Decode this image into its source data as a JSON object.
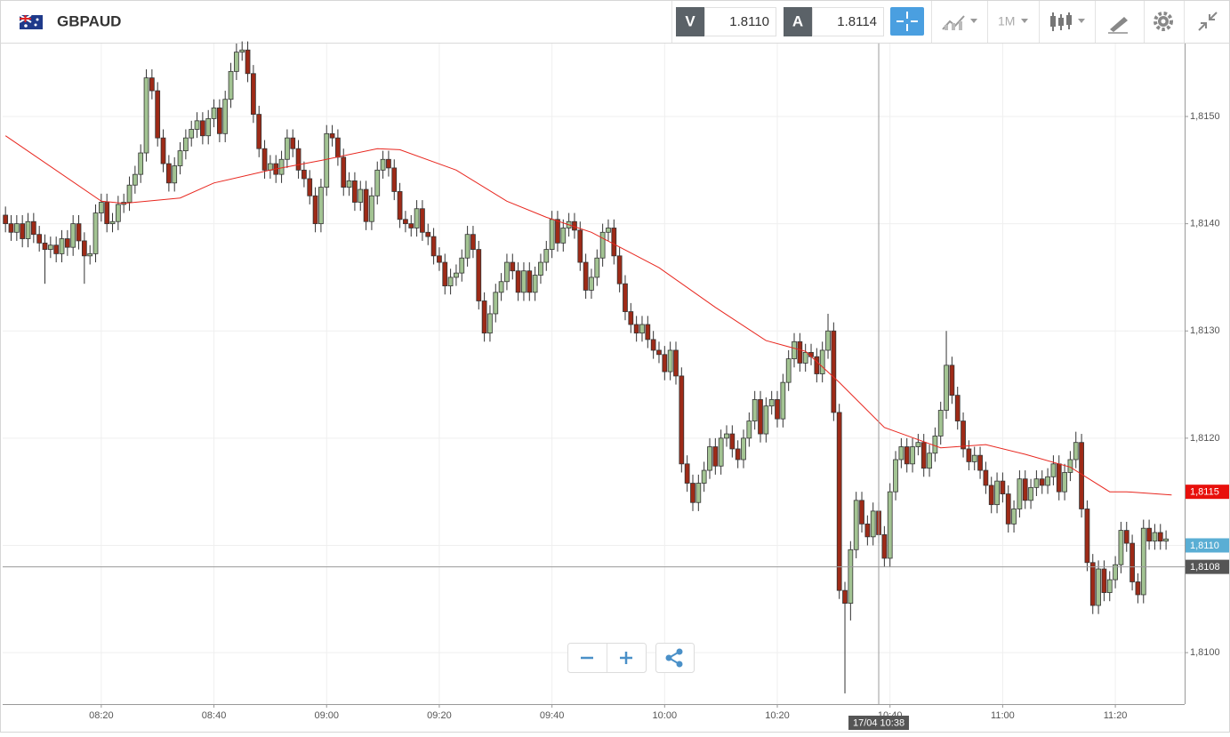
{
  "toolbar": {
    "symbol": "GBPAUD",
    "bid_label": "V",
    "bid": "1.8110",
    "ask_label": "A",
    "ask": "1.8114",
    "timeframe": "1M"
  },
  "chart_data": {
    "type": "candlestick",
    "up_color": "#a3c493",
    "down_color": "#9e2a17",
    "grid": true,
    "xlim": [
      482.5,
      692.3
    ],
    "ylim": [
      1.80952,
      1.81568
    ],
    "xticks": [
      {
        "value": 500,
        "label": "08:20"
      },
      {
        "value": 520,
        "label": "08:40"
      },
      {
        "value": 540,
        "label": "09:00"
      },
      {
        "value": 560,
        "label": "09:20"
      },
      {
        "value": 580,
        "label": "09:40"
      },
      {
        "value": 600,
        "label": "10:00"
      },
      {
        "value": 620,
        "label": "10:20"
      },
      {
        "value": 640,
        "label": "10:40"
      },
      {
        "value": 660,
        "label": "11:00"
      },
      {
        "value": 680,
        "label": "11:20"
      }
    ],
    "yticks": [
      {
        "value": 1.81,
        "label": "1,8100"
      },
      {
        "value": 1.811,
        "label": "1,8110"
      },
      {
        "value": 1.812,
        "label": "1,8120"
      },
      {
        "value": 1.813,
        "label": "1,8130"
      },
      {
        "value": 1.814,
        "label": "1,8140"
      },
      {
        "value": 1.815,
        "label": "1,8150"
      }
    ],
    "x": [
      483,
      484,
      485,
      486,
      487,
      488,
      489,
      490,
      491,
      492,
      493,
      494,
      495,
      496,
      497,
      498,
      499,
      500,
      501,
      502,
      503,
      504,
      505,
      506,
      507,
      508,
      509,
      510,
      511,
      512,
      513,
      514,
      515,
      516,
      517,
      518,
      519,
      520,
      521,
      522,
      523,
      524,
      525,
      526,
      527,
      528,
      529,
      530,
      531,
      532,
      533,
      534,
      535,
      536,
      537,
      538,
      539,
      540,
      541,
      542,
      543,
      544,
      545,
      546,
      547,
      548,
      549,
      550,
      551,
      552,
      553,
      554,
      555,
      556,
      557,
      558,
      559,
      560,
      561,
      562,
      563,
      564,
      565,
      566,
      567,
      568,
      569,
      570,
      571,
      572,
      573,
      574,
      575,
      576,
      577,
      578,
      579,
      580,
      581,
      582,
      583,
      584,
      585,
      586,
      587,
      588,
      589,
      590,
      591,
      592,
      593,
      594,
      595,
      596,
      597,
      598,
      599,
      600,
      601,
      602,
      603,
      604,
      605,
      606,
      607,
      608,
      609,
      610,
      611,
      612,
      613,
      614,
      615,
      616,
      617,
      618,
      619,
      620,
      621,
      622,
      623,
      624,
      625,
      626,
      627,
      628,
      629,
      630,
      631,
      632,
      633,
      634,
      635,
      636,
      637,
      638,
      639,
      640,
      641,
      642,
      643,
      644,
      645,
      646,
      647,
      648,
      649,
      650,
      651,
      652,
      653,
      654,
      655,
      656,
      657,
      658,
      659,
      660,
      661,
      662,
      663,
      664,
      665,
      666,
      667,
      668,
      669,
      670,
      671,
      672,
      673,
      674,
      675,
      676,
      677,
      678,
      679,
      680,
      681,
      682,
      683,
      684,
      685,
      686,
      687,
      688,
      689
    ],
    "open": [
      1.81408,
      1.814,
      1.81392,
      1.814,
      1.81386,
      1.81402,
      1.8139,
      1.81382,
      1.81376,
      1.8138,
      1.81372,
      1.81386,
      1.81378,
      1.814,
      1.81384,
      1.8137,
      1.81372,
      1.8141,
      1.8142,
      1.814,
      1.81402,
      1.81418,
      1.8142,
      1.81436,
      1.81446,
      1.81466,
      1.81536,
      1.81524,
      1.8148,
      1.81456,
      1.81438,
      1.81454,
      1.81468,
      1.8148,
      1.81488,
      1.81496,
      1.81482,
      1.81498,
      1.81508,
      1.81484,
      1.81516,
      1.81542,
      1.8156,
      1.81562,
      1.8154,
      1.81502,
      1.8147,
      1.8145,
      1.81456,
      1.81446,
      1.8146,
      1.8148,
      1.8147,
      1.8145,
      1.81442,
      1.81426,
      1.814,
      1.81434,
      1.81484,
      1.8148,
      1.81462,
      1.81434,
      1.8144,
      1.8142,
      1.81432,
      1.81402,
      1.81426,
      1.8145,
      1.8146,
      1.81452,
      1.8143,
      1.81404,
      1.814,
      1.81396,
      1.81414,
      1.81392,
      1.81388,
      1.8137,
      1.81364,
      1.81342,
      1.8135,
      1.81354,
      1.81368,
      1.8139,
      1.81376,
      1.81328,
      1.81298,
      1.81316,
      1.81336,
      1.81346,
      1.81364,
      1.81356,
      1.81336,
      1.81356,
      1.81336,
      1.81352,
      1.81364,
      1.81376,
      1.81404,
      1.81382,
      1.81396,
      1.81402,
      1.81394,
      1.81364,
      1.81338,
      1.8135,
      1.81368,
      1.81392,
      1.81396,
      1.8137,
      1.81344,
      1.81318,
      1.81306,
      1.81298,
      1.81306,
      1.81292,
      1.81282,
      1.81278,
      1.81262,
      1.81282,
      1.81258,
      1.81176,
      1.81158,
      1.8114,
      1.81158,
      1.8117,
      1.81192,
      1.81174,
      1.812,
      1.81204,
      1.8119,
      1.8118,
      1.812,
      1.81216,
      1.81236,
      1.81204,
      1.8123,
      1.81236,
      1.81218,
      1.81252,
      1.81274,
      1.8129,
      1.8127,
      1.8128,
      1.81276,
      1.8126,
      1.81282,
      1.813,
      1.81224,
      1.81058,
      1.81046,
      1.81096,
      1.81142,
      1.8112,
      1.81108,
      1.81132,
      1.8111,
      1.81088,
      1.8115,
      1.8118,
      1.81192,
      1.81176,
      1.81192,
      1.81196,
      1.81172,
      1.81186,
      1.81202,
      1.81226,
      1.81268,
      1.8124,
      1.81216,
      1.8119,
      1.81178,
      1.81184,
      1.8117,
      1.81156,
      1.81138,
      1.8116,
      1.81148,
      1.8112,
      1.81134,
      1.81162,
      1.81142,
      1.81154,
      1.81162,
      1.81156,
      1.81164,
      1.81176,
      1.8115,
      1.81168,
      1.8118,
      1.81196,
      1.81134,
      1.81084,
      1.81044,
      1.81078,
      1.81056,
      1.81068,
      1.81082,
      1.81114,
      1.81102,
      1.81066,
      1.81054,
      1.81116,
      1.81104,
      1.81112,
      1.81104
    ],
    "high": [
      1.81416,
      1.81408,
      1.81408,
      1.81408,
      1.8141,
      1.8141,
      1.81398,
      1.8139,
      1.81388,
      1.81388,
      1.81394,
      1.81394,
      1.81408,
      1.81408,
      1.81392,
      1.8138,
      1.81418,
      1.81428,
      1.81428,
      1.8141,
      1.81426,
      1.81428,
      1.81444,
      1.81454,
      1.81474,
      1.81544,
      1.81544,
      1.81532,
      1.81488,
      1.81464,
      1.81462,
      1.81476,
      1.81488,
      1.81496,
      1.81504,
      1.81504,
      1.81506,
      1.81516,
      1.81516,
      1.81524,
      1.8155,
      1.81568,
      1.8157,
      1.8157,
      1.81548,
      1.8151,
      1.81478,
      1.81464,
      1.81464,
      1.81468,
      1.81488,
      1.81488,
      1.81478,
      1.81458,
      1.8145,
      1.81434,
      1.81442,
      1.81492,
      1.81492,
      1.81488,
      1.8147,
      1.81448,
      1.81448,
      1.8144,
      1.8144,
      1.81434,
      1.81458,
      1.81468,
      1.81468,
      1.8146,
      1.81438,
      1.81412,
      1.81408,
      1.81422,
      1.81422,
      1.814,
      1.81396,
      1.81378,
      1.81372,
      1.81358,
      1.81362,
      1.81376,
      1.81398,
      1.81398,
      1.81384,
      1.81336,
      1.81324,
      1.81344,
      1.81354,
      1.81372,
      1.81372,
      1.81364,
      1.81364,
      1.81364,
      1.8136,
      1.81372,
      1.81384,
      1.81412,
      1.81412,
      1.81404,
      1.8141,
      1.8141,
      1.81402,
      1.81372,
      1.81358,
      1.81376,
      1.814,
      1.81404,
      1.81404,
      1.81378,
      1.81352,
      1.81326,
      1.81314,
      1.81314,
      1.81314,
      1.813,
      1.8129,
      1.81286,
      1.8129,
      1.8129,
      1.81266,
      1.81184,
      1.81166,
      1.81166,
      1.81178,
      1.812,
      1.812,
      1.81208,
      1.81212,
      1.81212,
      1.81198,
      1.81208,
      1.81224,
      1.81244,
      1.81244,
      1.81238,
      1.81244,
      1.81244,
      1.8126,
      1.81282,
      1.81298,
      1.81298,
      1.81288,
      1.81288,
      1.81284,
      1.8129,
      1.81316,
      1.81308,
      1.81232,
      1.81066,
      1.81104,
      1.8115,
      1.8115,
      1.81128,
      1.8114,
      1.8114,
      1.81118,
      1.81158,
      1.81188,
      1.812,
      1.812,
      1.812,
      1.81204,
      1.81204,
      1.81194,
      1.8121,
      1.81234,
      1.813,
      1.81276,
      1.81248,
      1.81224,
      1.81198,
      1.81192,
      1.81192,
      1.81178,
      1.81164,
      1.81168,
      1.81168,
      1.81156,
      1.81142,
      1.8117,
      1.8117,
      1.81162,
      1.8117,
      1.8117,
      1.81172,
      1.81184,
      1.81184,
      1.81176,
      1.81188,
      1.81206,
      1.81204,
      1.81142,
      1.81092,
      1.81086,
      1.81086,
      1.81076,
      1.8109,
      1.81122,
      1.81122,
      1.8111,
      1.81074,
      1.81124,
      1.81124,
      1.8112,
      1.8112,
      1.81114
    ],
    "low": [
      1.81392,
      1.81384,
      1.81384,
      1.81378,
      1.81378,
      1.81382,
      1.81374,
      1.81344,
      1.81368,
      1.81364,
      1.81364,
      1.8137,
      1.8137,
      1.81376,
      1.81344,
      1.81362,
      1.81364,
      1.81402,
      1.81392,
      1.81392,
      1.81394,
      1.8141,
      1.81412,
      1.81428,
      1.81438,
      1.81458,
      1.81516,
      1.81472,
      1.81448,
      1.8143,
      1.8143,
      1.81446,
      1.8146,
      1.81472,
      1.8148,
      1.81474,
      1.81474,
      1.8149,
      1.81476,
      1.81476,
      1.81508,
      1.81534,
      1.81552,
      1.81532,
      1.81494,
      1.81462,
      1.81442,
      1.81442,
      1.81438,
      1.81438,
      1.81452,
      1.81462,
      1.81442,
      1.81434,
      1.81418,
      1.81392,
      1.81392,
      1.81426,
      1.81472,
      1.81454,
      1.81426,
      1.81426,
      1.81412,
      1.81412,
      1.81394,
      1.81394,
      1.81418,
      1.81442,
      1.81444,
      1.81422,
      1.81396,
      1.81392,
      1.81388,
      1.81388,
      1.81384,
      1.8138,
      1.81362,
      1.81356,
      1.81334,
      1.81334,
      1.81342,
      1.81346,
      1.8136,
      1.81368,
      1.8132,
      1.8129,
      1.8129,
      1.81308,
      1.81328,
      1.81338,
      1.81348,
      1.81328,
      1.81328,
      1.81328,
      1.81328,
      1.81344,
      1.81356,
      1.81368,
      1.81374,
      1.81374,
      1.81388,
      1.81386,
      1.81356,
      1.8133,
      1.8133,
      1.81342,
      1.8136,
      1.81384,
      1.81362,
      1.81336,
      1.8131,
      1.81298,
      1.8129,
      1.8129,
      1.81284,
      1.81274,
      1.8127,
      1.81254,
      1.81254,
      1.8125,
      1.81168,
      1.8115,
      1.81132,
      1.81132,
      1.8115,
      1.81162,
      1.81166,
      1.81166,
      1.81192,
      1.81182,
      1.81172,
      1.81172,
      1.81192,
      1.81208,
      1.81196,
      1.81196,
      1.81222,
      1.8121,
      1.8121,
      1.81244,
      1.81266,
      1.81262,
      1.81262,
      1.81268,
      1.81252,
      1.81252,
      1.81274,
      1.81216,
      1.8105,
      1.80962,
      1.8103,
      1.81088,
      1.81112,
      1.811,
      1.811,
      1.81102,
      1.8108,
      1.8108,
      1.81142,
      1.81172,
      1.81168,
      1.81168,
      1.81184,
      1.81164,
      1.81164,
      1.81178,
      1.81194,
      1.81218,
      1.81232,
      1.81208,
      1.81182,
      1.8117,
      1.8117,
      1.81162,
      1.81148,
      1.8113,
      1.8113,
      1.8114,
      1.81112,
      1.81112,
      1.81126,
      1.81134,
      1.81134,
      1.81146,
      1.81148,
      1.81148,
      1.81156,
      1.81142,
      1.81142,
      1.8116,
      1.81172,
      1.81126,
      1.81076,
      1.81036,
      1.81036,
      1.81048,
      1.81048,
      1.8106,
      1.81074,
      1.81094,
      1.81058,
      1.81046,
      1.81046,
      1.81096,
      1.81096,
      1.81096,
      1.81096
    ],
    "close": [
      1.814,
      1.81392,
      1.814,
      1.81386,
      1.81402,
      1.8139,
      1.81382,
      1.81376,
      1.8138,
      1.81372,
      1.81386,
      1.81378,
      1.814,
      1.81384,
      1.8137,
      1.81372,
      1.8141,
      1.8142,
      1.814,
      1.81402,
      1.81418,
      1.8142,
      1.81436,
      1.81446,
      1.81466,
      1.81536,
      1.81524,
      1.8148,
      1.81456,
      1.81438,
      1.81454,
      1.81468,
      1.8148,
      1.81488,
      1.81496,
      1.81482,
      1.81498,
      1.81508,
      1.81484,
      1.81516,
      1.81542,
      1.8156,
      1.81562,
      1.8154,
      1.81502,
      1.8147,
      1.8145,
      1.81456,
      1.81446,
      1.8146,
      1.8148,
      1.8147,
      1.8145,
      1.81442,
      1.81426,
      1.814,
      1.81434,
      1.81484,
      1.8148,
      1.81462,
      1.81434,
      1.8144,
      1.8142,
      1.81432,
      1.81402,
      1.81426,
      1.8145,
      1.8146,
      1.81452,
      1.8143,
      1.81404,
      1.814,
      1.81396,
      1.81414,
      1.81392,
      1.81388,
      1.8137,
      1.81364,
      1.81342,
      1.8135,
      1.81354,
      1.81368,
      1.8139,
      1.81376,
      1.81328,
      1.81298,
      1.81316,
      1.81336,
      1.81346,
      1.81364,
      1.81356,
      1.81336,
      1.81356,
      1.81336,
      1.81352,
      1.81364,
      1.81376,
      1.81404,
      1.81382,
      1.81396,
      1.81402,
      1.81394,
      1.81364,
      1.81338,
      1.8135,
      1.81368,
      1.81392,
      1.81396,
      1.8137,
      1.81344,
      1.81318,
      1.81306,
      1.81298,
      1.81306,
      1.81292,
      1.81282,
      1.81278,
      1.81262,
      1.81282,
      1.81258,
      1.81176,
      1.81158,
      1.8114,
      1.81158,
      1.8117,
      1.81192,
      1.81174,
      1.812,
      1.81204,
      1.8119,
      1.8118,
      1.812,
      1.81216,
      1.81236,
      1.81204,
      1.8123,
      1.81236,
      1.81218,
      1.81252,
      1.81274,
      1.8129,
      1.8127,
      1.8128,
      1.81276,
      1.8126,
      1.81282,
      1.813,
      1.81224,
      1.81058,
      1.81046,
      1.81096,
      1.81142,
      1.8112,
      1.81108,
      1.81132,
      1.8111,
      1.81088,
      1.8115,
      1.8118,
      1.81192,
      1.81176,
      1.81192,
      1.81196,
      1.81172,
      1.81186,
      1.81202,
      1.81226,
      1.81268,
      1.8124,
      1.81216,
      1.8119,
      1.81178,
      1.81184,
      1.8117,
      1.81156,
      1.81138,
      1.8116,
      1.81148,
      1.8112,
      1.81134,
      1.81162,
      1.81142,
      1.81154,
      1.81162,
      1.81156,
      1.81164,
      1.81176,
      1.8115,
      1.81168,
      1.8118,
      1.81196,
      1.81134,
      1.81084,
      1.81044,
      1.81078,
      1.81056,
      1.81068,
      1.81082,
      1.81114,
      1.81102,
      1.81066,
      1.81054,
      1.81116,
      1.81104,
      1.81112,
      1.81104,
      1.81106
    ],
    "moving_average": {
      "color": "#e8271f",
      "x": [
        483,
        500,
        504,
        514,
        520,
        530,
        539,
        549,
        553,
        563,
        572,
        579,
        587,
        599,
        609,
        618,
        625,
        631,
        639,
        649,
        657,
        664,
        672,
        679,
        682,
        690
      ],
      "values": [
        1.81482,
        1.81421,
        1.81419,
        1.81424,
        1.81438,
        1.8145,
        1.81459,
        1.8147,
        1.81469,
        1.8145,
        1.81421,
        1.81406,
        1.81392,
        1.81359,
        1.81322,
        1.81291,
        1.81281,
        1.81252,
        1.8121,
        1.81191,
        1.81194,
        1.81185,
        1.81173,
        1.8115,
        1.8115,
        1.81147
      ]
    },
    "price_tags": [
      {
        "value": 1.8115,
        "label": "1,8115",
        "color": "#e8100c"
      },
      {
        "value": 1.811,
        "label": "1,8110",
        "color": "#5aaed4"
      }
    ],
    "crosshair": {
      "price": {
        "value": 1.8108,
        "label": "1,8108"
      },
      "time": {
        "value": 638,
        "label": "17/04 10:38"
      }
    }
  }
}
